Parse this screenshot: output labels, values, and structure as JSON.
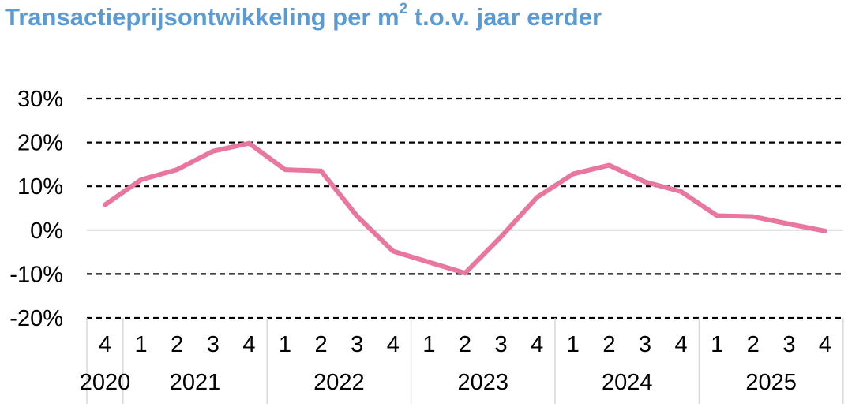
{
  "title": {
    "main": "Transactieprijsontwikkeling per m",
    "superscript": "2",
    "suffix": " t.o.v. jaar eerder",
    "color": "#5b9bd5"
  },
  "chart_data": {
    "type": "line",
    "title": "Transactieprijsontwikkeling per m2 t.o.v. jaar eerder",
    "xlabel": "",
    "ylabel": "",
    "ylim": [
      -20,
      30
    ],
    "yticks": [
      30,
      20,
      10,
      0,
      -10,
      -20
    ],
    "ytick_labels": [
      "30%",
      "20%",
      "10%",
      "0%",
      "-10%",
      "-20%"
    ],
    "grid": "dashed horizontal",
    "legend": "none",
    "quarters": [
      "4",
      "1",
      "2",
      "3",
      "4",
      "1",
      "2",
      "3",
      "4",
      "1",
      "2",
      "3",
      "4",
      "1",
      "2",
      "3",
      "4",
      "1",
      "2",
      "3",
      "4"
    ],
    "years": [
      {
        "label": "2020",
        "count": 1
      },
      {
        "label": "2021",
        "count": 4
      },
      {
        "label": "2022",
        "count": 4
      },
      {
        "label": "2023",
        "count": 4
      },
      {
        "label": "2024",
        "count": 4
      },
      {
        "label": "2025",
        "count": 4
      }
    ],
    "series": [
      {
        "color": "#e8769f",
        "values": [
          5.8,
          11.5,
          13.8,
          18.0,
          19.8,
          13.8,
          13.5,
          3.2,
          -4.8,
          -7.3,
          -9.8,
          -1.5,
          7.5,
          12.8,
          14.8,
          11.0,
          8.8,
          3.3,
          3.1,
          1.4,
          -0.2
        ]
      }
    ]
  }
}
